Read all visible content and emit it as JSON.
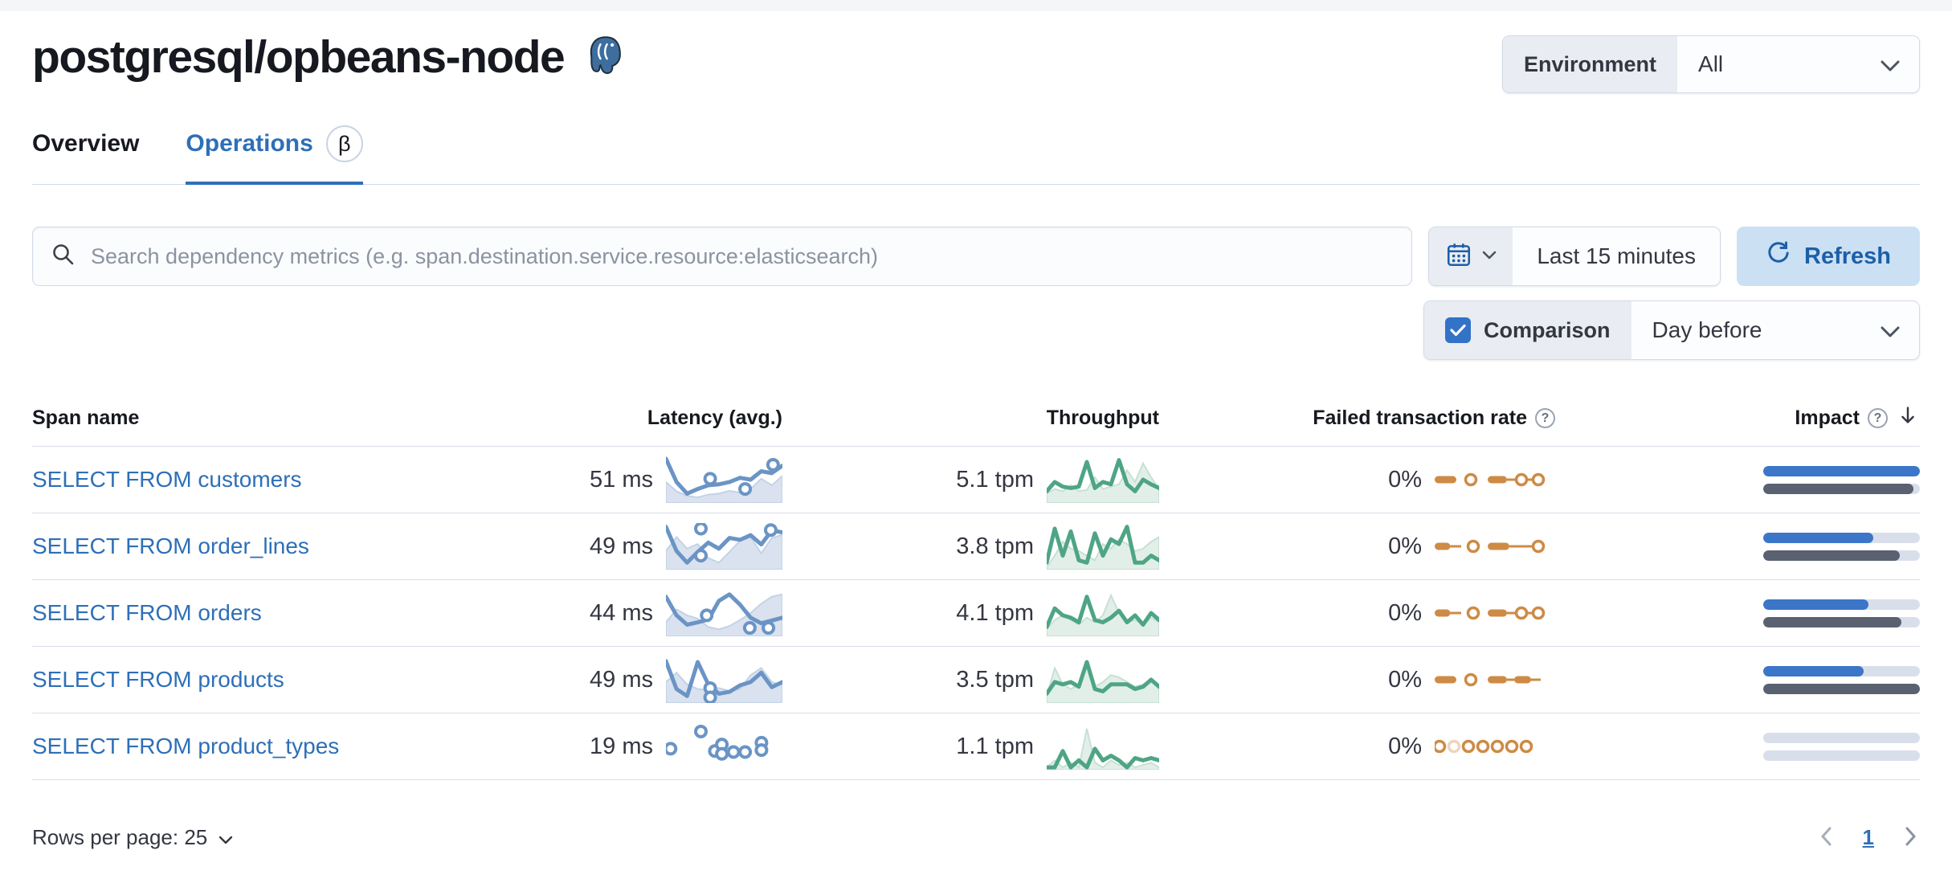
{
  "colors": {
    "link_blue": "#2e6fb8",
    "refresh_bg": "#cce0f4",
    "refresh_text": "#1c5fa8",
    "impact_current": "#3b76c8",
    "impact_previous": "#5a6170",
    "impact_track": "#d9dfea",
    "latency_line": "#6b94c5",
    "latency_area": "#dae2ef",
    "latency_area_stroke": "#c3d3e6",
    "throughput_line": "#4ea585",
    "throughput_area": "#cfe6da",
    "throughput_area_stroke": "#a3cdba",
    "ftr": "#cd8b45",
    "segment_bg": "#e9edf3",
    "border": "#d3dae6"
  },
  "header": {
    "title": "postgresql/opbeans-node",
    "environment_label": "Environment",
    "environment_value": "All"
  },
  "tabs": [
    {
      "label": "Overview",
      "active": false
    },
    {
      "label": "Operations",
      "active": true,
      "badge": "β"
    }
  ],
  "controls": {
    "search_placeholder": "Search dependency metrics (e.g. span.destination.service.resource:elasticsearch)",
    "time_range": "Last 15 minutes",
    "refresh_label": "Refresh",
    "comparison_label": "Comparison",
    "comparison_checked": true,
    "comparison_value": "Day before"
  },
  "table": {
    "columns": [
      "Span name",
      "Latency (avg.)",
      "Throughput",
      "Failed transaction rate",
      "Impact"
    ],
    "rows": [
      {
        "span_name": "SELECT FROM customers",
        "latency": "51 ms",
        "throughput": "5.1 tpm",
        "failed_rate": "0%",
        "latency_spark": {
          "area": [
            55,
            75,
            85,
            88,
            82,
            80,
            74,
            78,
            70,
            48,
            62,
            42
          ],
          "line": [
            5,
            55,
            80,
            70,
            62,
            60,
            55,
            46,
            50,
            32,
            36,
            20
          ],
          "dots": [
            [
              38,
              48
            ],
            [
              68,
              70
            ],
            [
              92,
              18
            ]
          ]
        },
        "throughput_spark": {
          "area": [
            80,
            70,
            75,
            62,
            75,
            72,
            45,
            70,
            65,
            60,
            30,
            55,
            15,
            45,
            70
          ],
          "line": [
            75,
            55,
            65,
            68,
            65,
            12,
            68,
            55,
            60,
            8,
            60,
            75,
            50,
            60,
            68
          ]
        },
        "ftr_spark": {
          "items": [
            [
              "dash",
              0,
              18
            ],
            [
              "dot",
              30
            ],
            [
              "dash",
              44,
              60
            ],
            [
              "line",
              60,
              86
            ],
            [
              "dot",
              72
            ],
            [
              "dot",
              86
            ]
          ]
        },
        "impact": {
          "current": 100,
          "previous": 96
        }
      },
      {
        "span_name": "SELECT FROM order_lines",
        "latency": "49 ms",
        "throughput": "3.8 tpm",
        "failed_rate": "0%",
        "latency_spark": {
          "area": [
            60,
            30,
            55,
            45,
            75,
            85,
            62,
            38,
            30,
            65,
            32,
            25
          ],
          "line": [
            8,
            60,
            85,
            62,
            42,
            55,
            32,
            36,
            26,
            46,
            16,
            20
          ],
          "dots": [
            [
              30,
              12
            ],
            [
              30,
              70
            ],
            [
              90,
              15
            ]
          ]
        },
        "throughput_spark": {
          "area": [
            95,
            70,
            40,
            55,
            60,
            70,
            80,
            45,
            55,
            35,
            45,
            60,
            55,
            40,
            30
          ],
          "line": [
            85,
            12,
            70,
            18,
            80,
            85,
            22,
            70,
            35,
            45,
            8,
            85,
            85,
            70,
            80
          ]
        },
        "ftr_spark": {
          "items": [
            [
              "dash",
              0,
              13
            ],
            [
              "line",
              13,
              22
            ],
            [
              "dot",
              32
            ],
            [
              "dash",
              44,
              62
            ],
            [
              "line",
              62,
              86
            ],
            [
              "dot",
              86
            ]
          ]
        },
        "impact": {
          "current": 70,
          "previous": 87
        }
      },
      {
        "span_name": "SELECT FROM orders",
        "latency": "44 ms",
        "throughput": "4.1 tpm",
        "failed_rate": "0%",
        "latency_spark": {
          "area": [
            70,
            42,
            55,
            62,
            80,
            85,
            78,
            65,
            50,
            30,
            15,
            10
          ],
          "line": [
            15,
            55,
            75,
            70,
            64,
            24,
            10,
            32,
            60,
            72,
            66,
            60
          ],
          "dots": [
            [
              35,
              55
            ],
            [
              72,
              82
            ],
            [
              88,
              82
            ]
          ]
        },
        "throughput_spark": {
          "area": [
            85,
            65,
            55,
            65,
            75,
            60,
            70,
            55,
            12,
            50,
            70,
            65,
            75,
            60,
            70
          ],
          "line": [
            80,
            40,
            55,
            60,
            70,
            15,
            65,
            70,
            60,
            45,
            70,
            55,
            75,
            50,
            65
          ]
        },
        "ftr_spark": {
          "items": [
            [
              "dash",
              0,
              13
            ],
            [
              "line",
              13,
              22
            ],
            [
              "dot",
              32
            ],
            [
              "dash",
              44,
              60
            ],
            [
              "line",
              60,
              86
            ],
            [
              "dot",
              72
            ],
            [
              "dot",
              86
            ]
          ]
        },
        "impact": {
          "current": 67,
          "previous": 88
        }
      },
      {
        "span_name": "SELECT FROM products",
        "latency": "49 ms",
        "throughput": "3.5 tpm",
        "failed_rate": "0%",
        "latency_spark": {
          "area": [
            55,
            35,
            60,
            70,
            72,
            68,
            74,
            70,
            40,
            25,
            55,
            62
          ],
          "line": [
            10,
            70,
            85,
            12,
            60,
            80,
            76,
            62,
            55,
            35,
            66,
            55
          ],
          "dots": [
            [
              38,
              68
            ],
            [
              38,
              88
            ]
          ]
        },
        "throughput_spark": {
          "area": [
            85,
            25,
            60,
            70,
            60,
            18,
            65,
            55,
            40,
            45,
            55,
            65,
            60,
            50,
            70
          ],
          "line": [
            80,
            55,
            60,
            55,
            65,
            12,
            70,
            75,
            60,
            60,
            60,
            70,
            65,
            50,
            65
          ]
        },
        "ftr_spark": {
          "items": [
            [
              "dash",
              0,
              18
            ],
            [
              "dot",
              30
            ],
            [
              "dash",
              44,
              60
            ],
            [
              "line",
              60,
              66
            ],
            [
              "dash",
              66,
              80
            ],
            [
              "line",
              80,
              88
            ]
          ]
        },
        "impact": {
          "current": 64,
          "previous": 100
        }
      },
      {
        "span_name": "SELECT FROM product_types",
        "latency": "19 ms",
        "throughput": "1.1 tpm",
        "failed_rate": "0%",
        "latency_spark": {
          "area": [],
          "line": [],
          "dots": [
            [
              4,
              55
            ],
            [
              30,
              18
            ],
            [
              42,
              60
            ],
            [
              48,
              46
            ],
            [
              48,
              66
            ],
            [
              58,
              62
            ],
            [
              68,
              62
            ],
            [
              82,
              42
            ],
            [
              82,
              58
            ]
          ]
        },
        "throughput_spark": {
          "area": [
            95,
            80,
            95,
            85,
            95,
            12,
            85,
            95,
            80,
            90,
            85,
            95,
            90,
            85,
            95
          ],
          "line": [
            95,
            95,
            60,
            95,
            80,
            95,
            55,
            80,
            70,
            80,
            95,
            75,
            80,
            75,
            80
          ]
        },
        "ftr_spark": {
          "items": [
            [
              "dot",
              4
            ],
            [
              "dot-faded",
              16
            ],
            [
              "dot",
              28
            ],
            [
              "dot",
              40
            ],
            [
              "dot",
              52
            ],
            [
              "dot",
              64
            ],
            [
              "dot",
              76
            ]
          ]
        },
        "impact": {
          "current": 0,
          "previous": 0
        }
      }
    ]
  },
  "footer": {
    "rows_per_page_label": "Rows per page: 25",
    "page": "1"
  }
}
